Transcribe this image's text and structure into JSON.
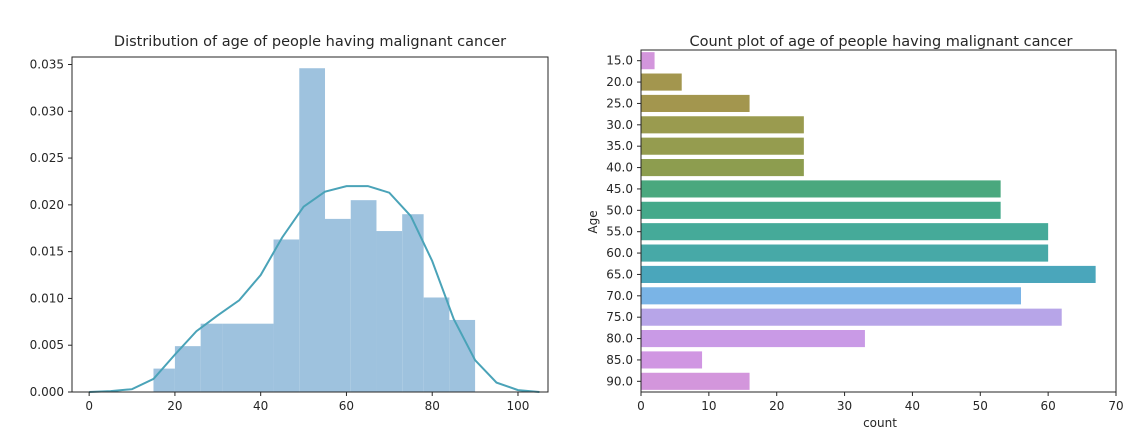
{
  "chart_data": [
    {
      "type": "histogram",
      "title": "Distribution of age of people having malignant cancer",
      "xlabel": "",
      "ylabel": "",
      "xlim": [
        -4,
        107
      ],
      "ylim": [
        0,
        0.0358
      ],
      "xticks": [
        0,
        20,
        40,
        60,
        80,
        100
      ],
      "yticks": [
        "0.000",
        "0.005",
        "0.010",
        "0.015",
        "0.020",
        "0.025",
        "0.030",
        "0.035"
      ],
      "bar_color": "#9ec2de",
      "kde_color": "#4aa3b8",
      "bins": [
        {
          "x0": 15.0,
          "x1": 20.0,
          "value": 0.0025
        },
        {
          "x0": 20.0,
          "x1": 26.0,
          "value": 0.0049
        },
        {
          "x0": 26.0,
          "x1": 31.0,
          "value": 0.0073
        },
        {
          "x0": 31.0,
          "x1": 43.0,
          "value": 0.0073
        },
        {
          "x0": 43.0,
          "x1": 49.0,
          "value": 0.0163
        },
        {
          "x0": 49.0,
          "x1": 55.0,
          "value": 0.0346
        },
        {
          "x0": 55.0,
          "x1": 61.0,
          "value": 0.0185
        },
        {
          "x0": 61.0,
          "x1": 67.0,
          "value": 0.0205
        },
        {
          "x0": 67.0,
          "x1": 73.0,
          "value": 0.0172
        },
        {
          "x0": 73.0,
          "x1": 78.0,
          "value": 0.019
        },
        {
          "x0": 78.0,
          "x1": 84.0,
          "value": 0.0101
        },
        {
          "x0": 84.0,
          "x1": 90.0,
          "value": 0.0077
        }
      ],
      "kde": {
        "x": [
          0,
          5,
          10,
          15,
          20,
          25,
          30,
          35,
          40,
          45,
          50,
          55,
          60,
          65,
          70,
          75,
          80,
          85,
          90,
          95,
          100,
          105
        ],
        "y": [
          0.0,
          0.0001,
          0.0003,
          0.0014,
          0.004,
          0.0065,
          0.0082,
          0.0098,
          0.0125,
          0.0165,
          0.0198,
          0.0214,
          0.022,
          0.022,
          0.0213,
          0.0188,
          0.014,
          0.0078,
          0.0034,
          0.001,
          0.0002,
          0.0
        ]
      }
    },
    {
      "type": "bar",
      "orientation": "horizontal",
      "title": "Count plot of age of people having malignant cancer",
      "xlabel": "count",
      "ylabel": "Age",
      "xlim": [
        0,
        70
      ],
      "xticks": [
        0,
        10,
        20,
        30,
        40,
        50,
        60,
        70
      ],
      "categories": [
        "15.0",
        "20.0",
        "25.0",
        "30.0",
        "35.0",
        "40.0",
        "45.0",
        "50.0",
        "55.0",
        "60.0",
        "65.0",
        "70.0",
        "75.0",
        "80.0",
        "85.0",
        "90.0"
      ],
      "values": [
        2,
        6,
        16,
        24,
        24,
        24,
        53,
        53,
        60,
        60,
        67,
        56,
        62,
        33,
        9,
        16
      ],
      "colors": [
        "#d396dc",
        "#a3964e",
        "#a3964e",
        "#9a9b4f",
        "#959c4f",
        "#8d9d4f",
        "#4aa87e",
        "#44a98a",
        "#45aa99",
        "#47a9a7",
        "#4aa6bb",
        "#7ab4e6",
        "#b7a5e8",
        "#c99ae6",
        "#d096e2",
        "#d396dc"
      ]
    }
  ]
}
